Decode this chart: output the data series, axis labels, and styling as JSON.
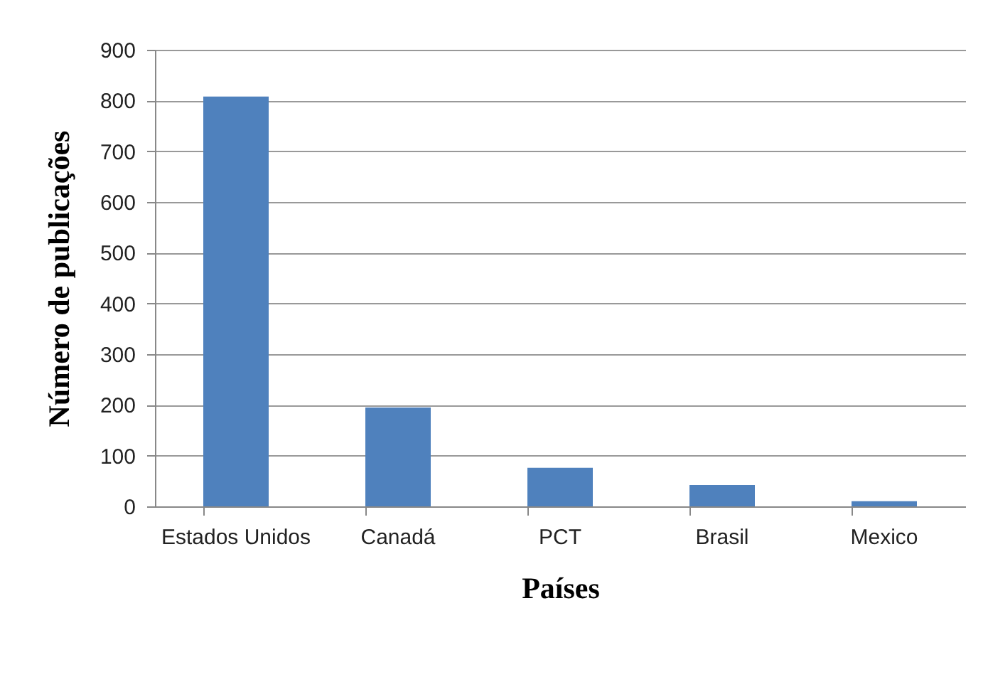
{
  "chart_data": {
    "type": "bar",
    "xlabel": "Países",
    "ylabel": "Número de publicações",
    "categories": [
      "Estados Unidos",
      "Canadá",
      "PCT",
      "Brasil",
      "Mexico"
    ],
    "values": [
      808,
      195,
      76,
      42,
      10
    ],
    "color": "#4f81bd",
    "ylim": [
      0,
      900
    ],
    "yticks": [
      0,
      100,
      200,
      300,
      400,
      500,
      600,
      700,
      800,
      900
    ],
    "grid": "y"
  }
}
